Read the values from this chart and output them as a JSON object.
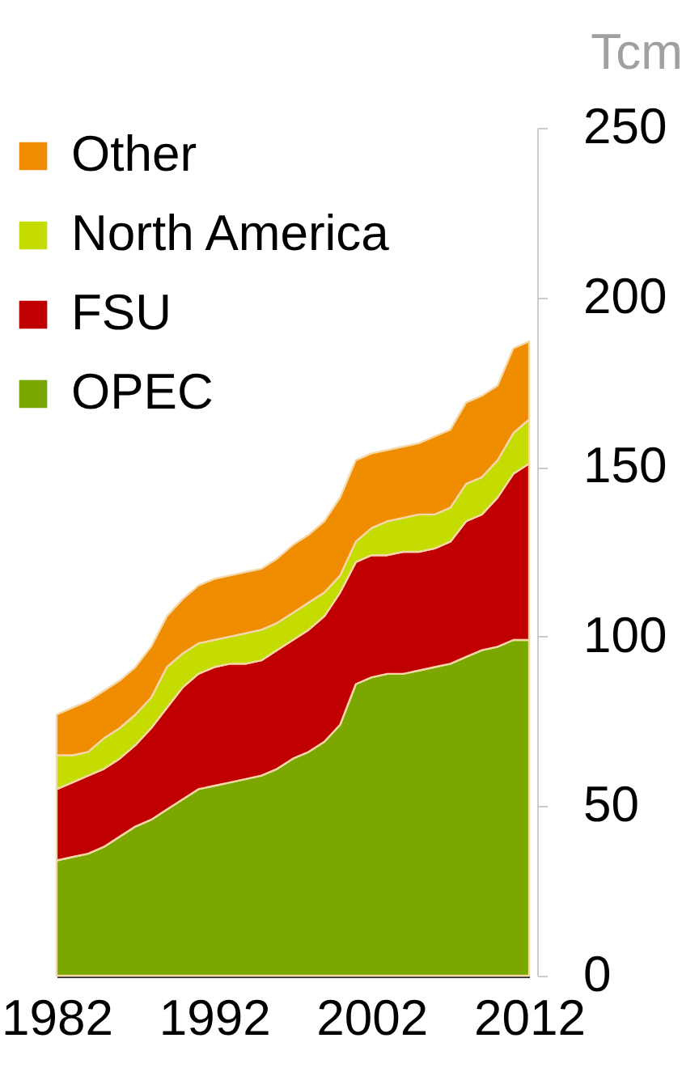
{
  "chart_data": {
    "type": "area",
    "stacked": true,
    "ylabel": "Tcm",
    "x": [
      1982,
      1983,
      1984,
      1985,
      1986,
      1987,
      1988,
      1989,
      1990,
      1991,
      1992,
      1993,
      1994,
      1995,
      1996,
      1997,
      1998,
      1999,
      2000,
      2001,
      2002,
      2003,
      2004,
      2005,
      2006,
      2007,
      2008,
      2009,
      2010,
      2011,
      2012
    ],
    "series": [
      {
        "name": "OPEC",
        "color": "#7aa800",
        "values": [
          34,
          35,
          36,
          38,
          41,
          44,
          46,
          49,
          52,
          55,
          56,
          57,
          58,
          59,
          61,
          64,
          66,
          69,
          74,
          86,
          88,
          89,
          89,
          90,
          91,
          92,
          94,
          96,
          97,
          99,
          99
        ]
      },
      {
        "name": "FSU",
        "color": "#c00000",
        "values": [
          21,
          22,
          23,
          23,
          23,
          24,
          27,
          30,
          33,
          34,
          35,
          35,
          34,
          34,
          35,
          35,
          36,
          37,
          39,
          36,
          36,
          35,
          36,
          35,
          35,
          36,
          40,
          40,
          44,
          49,
          52
        ]
      },
      {
        "name": "North America",
        "color": "#c4dc00",
        "values": [
          10,
          8,
          7,
          9,
          9,
          9,
          9,
          12,
          10,
          9,
          8,
          8,
          9,
          9,
          8,
          8,
          8,
          7,
          5,
          6,
          8,
          10,
          10,
          11,
          10,
          10,
          11,
          11,
          11,
          12,
          13
        ]
      },
      {
        "name": "Other",
        "color": "#f08c00",
        "values": [
          12,
          14,
          15,
          14,
          14,
          14,
          15,
          15,
          16,
          17,
          18,
          18,
          18,
          18,
          19,
          20,
          20,
          21,
          23,
          24,
          22,
          21,
          21,
          21,
          23,
          23,
          24,
          24,
          22,
          25,
          23
        ]
      }
    ],
    "xlim": [
      1982,
      2012
    ],
    "xticks": [
      1982,
      1992,
      2002,
      2012
    ],
    "ylim": [
      0,
      250
    ],
    "yticks": [
      0,
      50,
      100,
      150,
      200,
      250
    ],
    "grid": false,
    "legend": "top left"
  }
}
